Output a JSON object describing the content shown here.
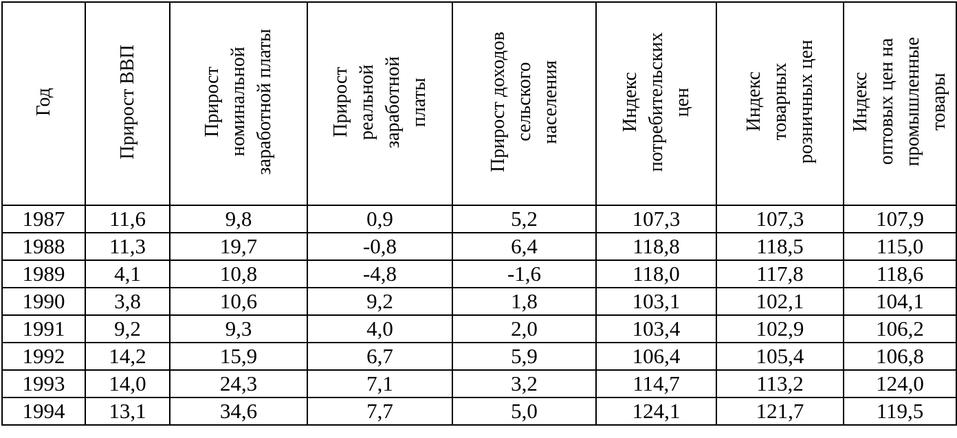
{
  "table": {
    "headers": [
      "Год",
      "Прирост ВВП",
      "Прирост\nноминальной\nзаработной платы",
      "Прирост\nреальной\nзаработной\nплаты",
      "Прирост доходов\nсельского\nнаселения",
      "Индекс\nпотребительских\nцен",
      "Индекс\nтоварных\nрозничных цен",
      "Индекс\nоптовых цен на\nпромышленные\nтовары"
    ],
    "rows": [
      [
        "1987",
        "11,6",
        "9,8",
        "0,9",
        "5,2",
        "107,3",
        "107,3",
        "107,9"
      ],
      [
        "1988",
        "11,3",
        "19,7",
        "-0,8",
        "6,4",
        "118,8",
        "118,5",
        "115,0"
      ],
      [
        "1989",
        "4,1",
        "10,8",
        "-4,8",
        "-1,6",
        "118,0",
        "117,8",
        "118,6"
      ],
      [
        "1990",
        "3,8",
        "10,6",
        "9,2",
        "1,8",
        "103,1",
        "102,1",
        "104,1"
      ],
      [
        "1991",
        "9,2",
        "9,3",
        "4,0",
        "2,0",
        "103,4",
        "102,9",
        "106,2"
      ],
      [
        "1992",
        "14,2",
        "15,9",
        "6,7",
        "5,9",
        "106,4",
        "105,4",
        "106,8"
      ],
      [
        "1993",
        "14,0",
        "24,3",
        "7,1",
        "3,2",
        "114,7",
        "113,2",
        "124,0"
      ],
      [
        "1994",
        "13,1",
        "34,6",
        "7,7",
        "5,0",
        "124,1",
        "121,7",
        "119,5"
      ]
    ]
  }
}
